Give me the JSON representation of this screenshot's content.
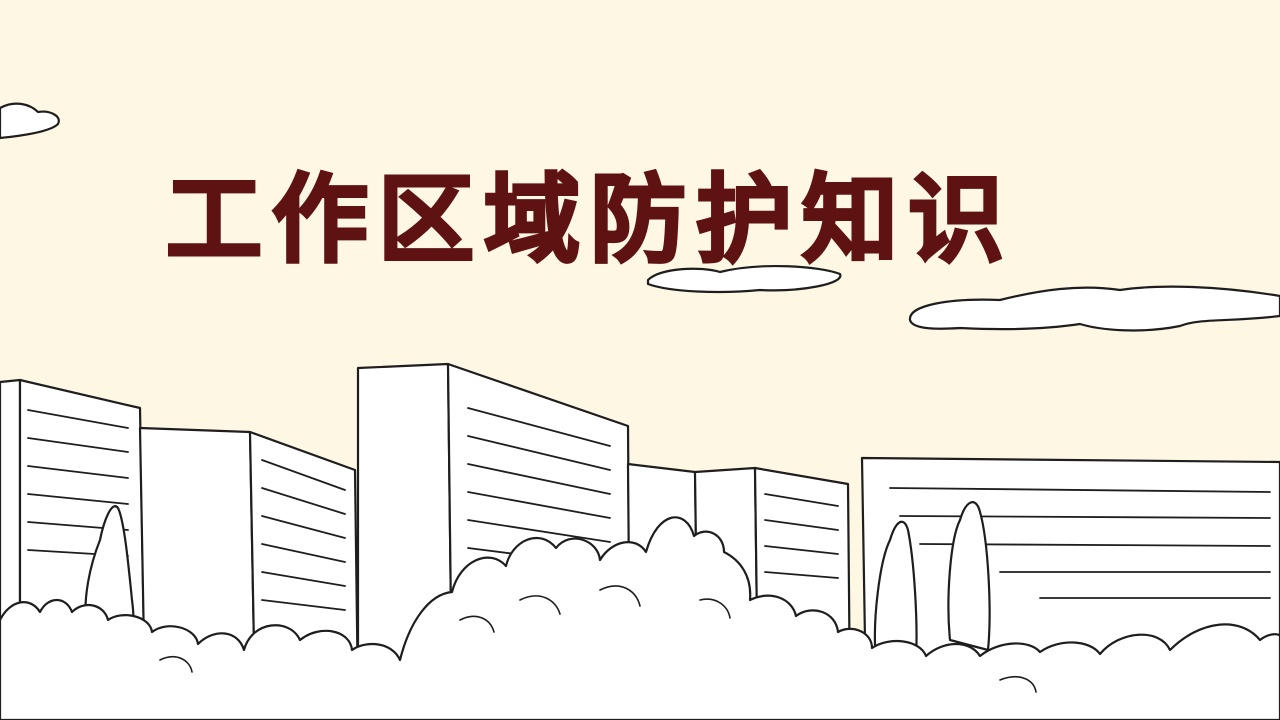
{
  "title": "工作区域防护知识",
  "colors": {
    "background": "#fdf7e3",
    "title": "#5e1212",
    "ink": "#1e1e1e",
    "fill": "#ffffff"
  }
}
